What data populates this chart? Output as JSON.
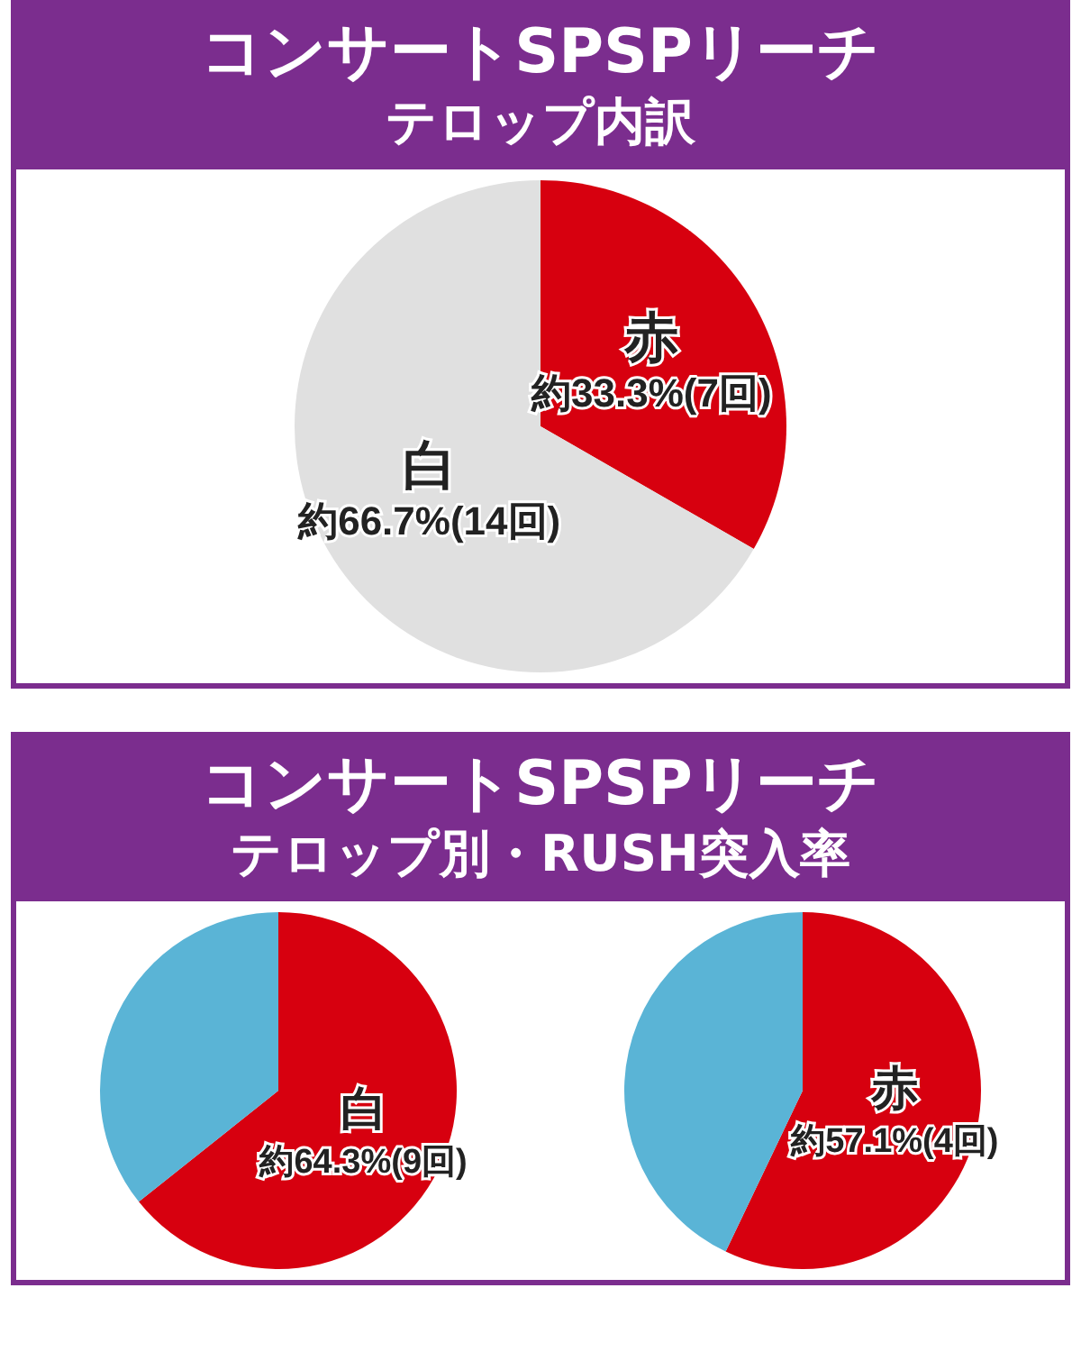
{
  "chart_data": [
    {
      "type": "pie",
      "title": "コンサートSPSPリーチ",
      "subtitle": "テロップ内訳",
      "categories": [
        "赤",
        "白"
      ],
      "values": [
        33.3,
        66.7
      ],
      "colors": [
        "#d7000f",
        "#e0e0e0"
      ],
      "value_labels": [
        "約33.3%(7回)",
        "約66.7%(14回)"
      ]
    },
    {
      "type": "pie",
      "title": "コンサートSPSPリーチ",
      "subtitle": "テロップ別・RUSH突入率",
      "categories": [
        "白",
        null
      ],
      "values": [
        64.3,
        35.7
      ],
      "colors": [
        "#d7000f",
        "#5ab4d6"
      ],
      "value_labels": [
        "約64.3%(9回)",
        null
      ]
    },
    {
      "type": "pie",
      "categories": [
        "赤",
        null
      ],
      "values": [
        57.1,
        42.9
      ],
      "colors": [
        "#d7000f",
        "#5ab4d6"
      ],
      "value_labels": [
        "約57.1%(4回)",
        null
      ]
    }
  ]
}
